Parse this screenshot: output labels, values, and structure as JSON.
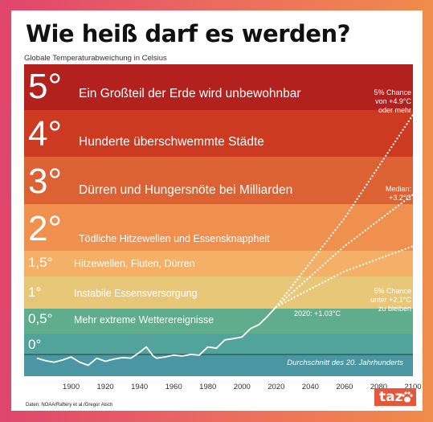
{
  "title": "Wie heiß darf es werden?",
  "subtitle": "Globale Temperaturabweichung in Celsius",
  "bands": [
    {
      "level": "5°",
      "text": "Ein Großteil der Erde wird unbewohnbar",
      "color": "#b3211e"
    },
    {
      "level": "4°",
      "text": "Hunderte überschwemmte Städte",
      "color": "#cc3a22"
    },
    {
      "level": "3°",
      "text": "Dürren und Hungersnöte bei Milliarden",
      "color": "#dd6233"
    },
    {
      "level": "2°",
      "text": "Tödliche Hitzewellen und Essensknappheit",
      "color": "#f0904e"
    },
    {
      "level": "1,5°",
      "text": "Hitzewellen, Fluten, Dürren",
      "color": "#f5b068"
    },
    {
      "level": "1°",
      "text": "Instabile Essensversorgung",
      "color": "#e8c779"
    },
    {
      "level": "0,5°",
      "text": "Mehr extreme Wetterereignisse",
      "color": "#5fad8d"
    },
    {
      "level": "0°",
      "text": "",
      "color": "#52a39c"
    },
    {
      "level": "",
      "text": "",
      "color": "#4a96a3"
    }
  ],
  "annotations": {
    "high": "5% Chance von +4.9°C oder mehr",
    "median": "Median: +3.2°C",
    "low": "5% Chance unter +2,1°C zu bleiben",
    "current": "2020: +1.03°C",
    "baseline": "Durchschnitt des 20. Jahrhunderts"
  },
  "source": "Daten: NOAA/Raftery et al./Gregor Aisch",
  "logo": "taz",
  "chart_data": {
    "type": "line",
    "xlabel": "",
    "ylabel": "Globale Temperaturabweichung in Celsius",
    "xlim": [
      1880,
      2100
    ],
    "ylim": [
      -0.7,
      5.5
    ],
    "x_ticks": [
      1900,
      1920,
      1940,
      1960,
      1980,
      2000,
      2020,
      2040,
      2060,
      2080,
      2100
    ],
    "series": [
      {
        "style": "solid",
        "x": [
          1880,
          1885,
          1890,
          1895,
          1900,
          1905,
          1910,
          1915,
          1920,
          1925,
          1930,
          1935,
          1940,
          1944,
          1948,
          1950,
          1955,
          1960,
          1965,
          1970,
          1975,
          1980,
          1985,
          1990,
          1995,
          2000,
          2005,
          2010,
          2015,
          2020
        ],
        "y": [
          -0.12,
          -0.2,
          -0.25,
          -0.18,
          -0.08,
          -0.25,
          -0.35,
          -0.12,
          -0.22,
          -0.15,
          -0.1,
          -0.12,
          0.05,
          0.18,
          -0.05,
          -0.12,
          -0.08,
          -0.02,
          -0.05,
          0.0,
          -0.02,
          0.18,
          0.15,
          0.35,
          0.38,
          0.42,
          0.6,
          0.68,
          0.85,
          1.03
        ]
      },
      {
        "style": "dotted",
        "x": [
          2020,
          2060,
          2100
        ],
        "y": [
          1.03,
          2.7,
          4.9
        ]
      },
      {
        "style": "dotted",
        "x": [
          2020,
          2060,
          2100
        ],
        "y": [
          1.03,
          2.1,
          3.2
        ]
      },
      {
        "style": "dotted",
        "x": [
          2020,
          2060,
          2100
        ],
        "y": [
          1.03,
          1.6,
          2.1
        ]
      }
    ],
    "baseline": 0
  }
}
